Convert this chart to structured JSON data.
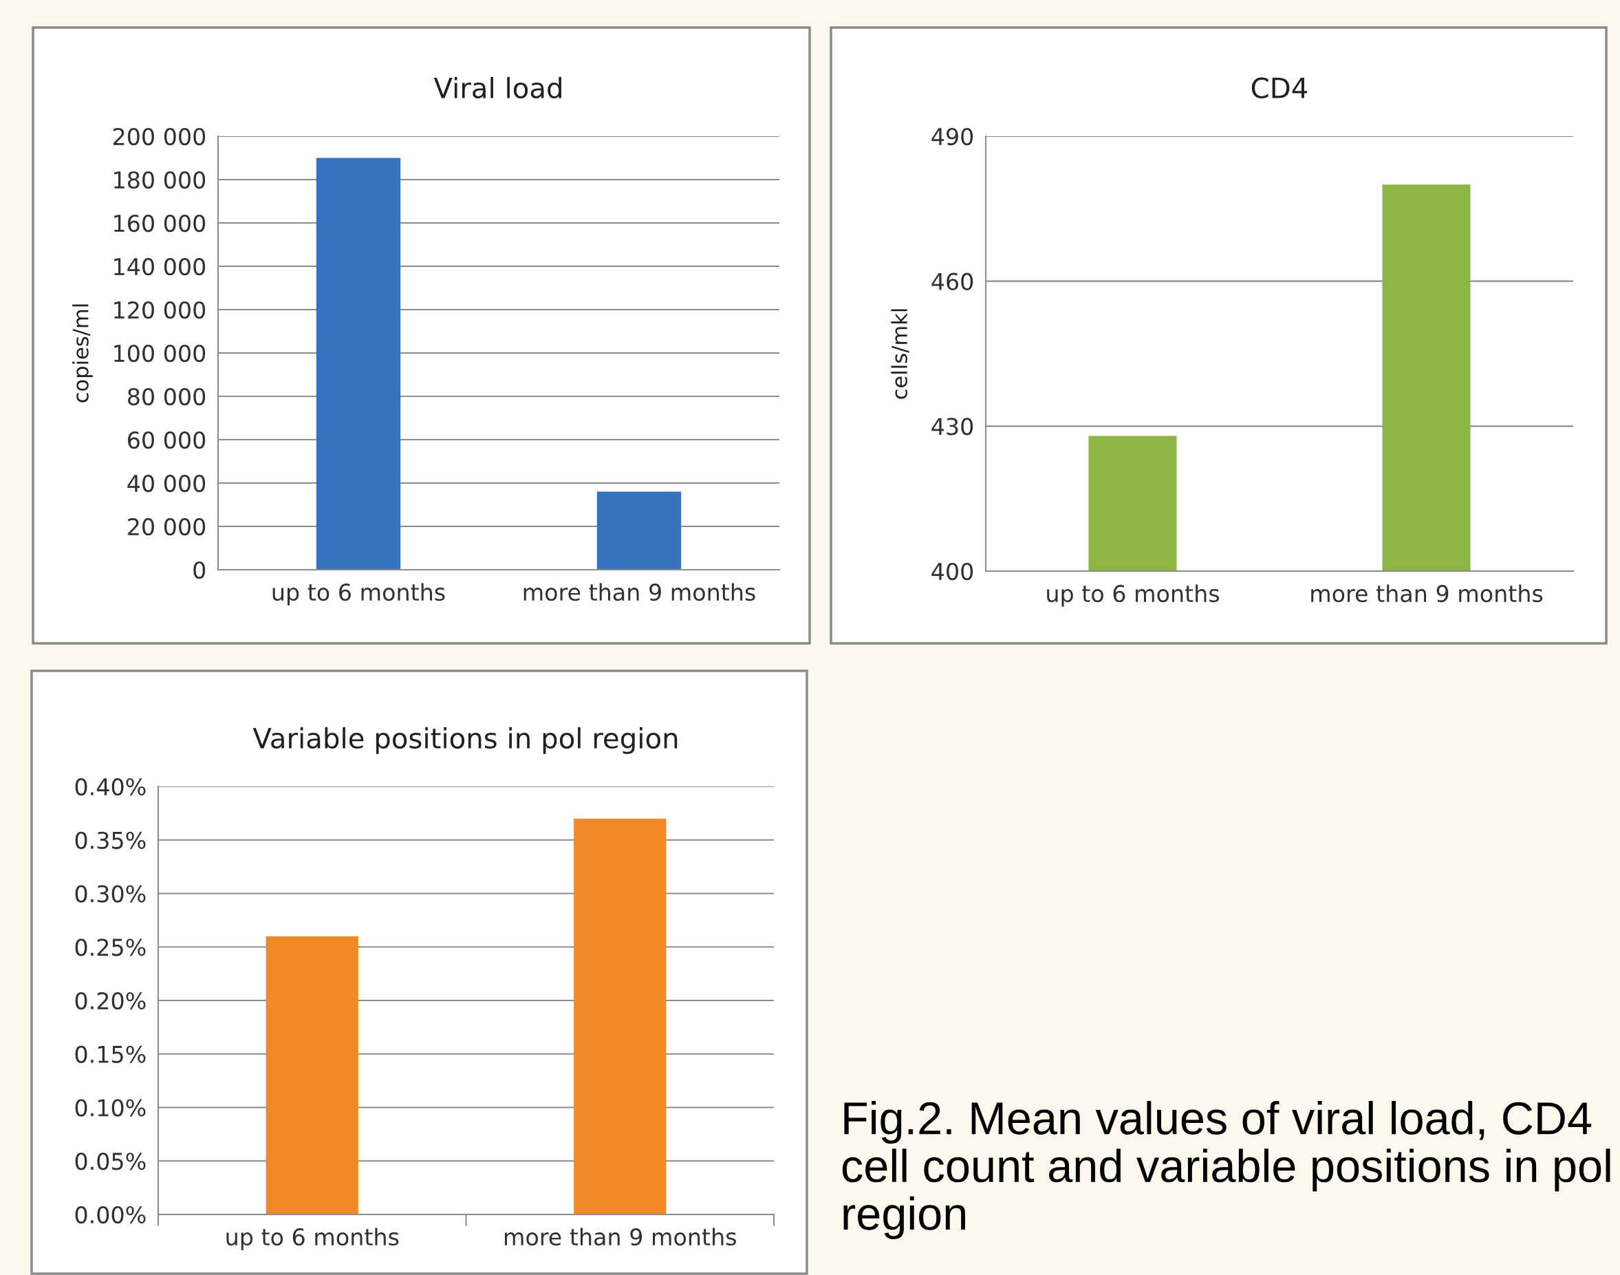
{
  "chart_data": [
    {
      "type": "bar",
      "title": "Viral load",
      "ylabel": "copies/ml",
      "categories": [
        "up to 6 months",
        "more than 9 months"
      ],
      "values": [
        190000,
        36000
      ],
      "color": "#3673bf",
      "ylim": [
        0,
        200000
      ],
      "yticks": [
        {
          "value": 0,
          "label": "0"
        },
        {
          "value": 20000,
          "label": "20 000"
        },
        {
          "value": 40000,
          "label": "40 000"
        },
        {
          "value": 60000,
          "label": "60 000"
        },
        {
          "value": 80000,
          "label": "80 000"
        },
        {
          "value": 100000,
          "label": "100 000"
        },
        {
          "value": 120000,
          "label": "120 000"
        },
        {
          "value": 140000,
          "label": "140 000"
        },
        {
          "value": 160000,
          "label": "160 000"
        },
        {
          "value": 180000,
          "label": "180 000"
        },
        {
          "value": 200000,
          "label": "200 000"
        }
      ],
      "grid": "y"
    },
    {
      "type": "bar",
      "title": "CD4",
      "ylabel": "cells/mkl",
      "categories": [
        "up to 6 months",
        "more than 9 months"
      ],
      "values": [
        428,
        480
      ],
      "color": "#8db444",
      "ylim": [
        400,
        490
      ],
      "yticks": [
        400,
        430,
        460,
        490
      ],
      "grid": "y"
    },
    {
      "type": "bar",
      "title": "Variable positions in pol region",
      "categories": [
        "up to 6 months",
        "more than 9 months"
      ],
      "values": [
        0.26,
        0.37
      ],
      "color": "#f08a26",
      "ylim": [
        0,
        0.4
      ],
      "yticks": [
        {
          "value": 0,
          "label": "0.00%"
        },
        {
          "value": 0.05,
          "label": "0.05%"
        },
        {
          "value": 0.1,
          "label": "0.10%"
        },
        {
          "value": 0.15,
          "label": "0.15%"
        },
        {
          "value": 0.2,
          "label": "0.20%"
        },
        {
          "value": 0.25,
          "label": "0.25%"
        },
        {
          "value": 0.3,
          "label": "0.30%"
        },
        {
          "value": 0.35,
          "label": "0.35%"
        },
        {
          "value": 0.4,
          "label": "0.40%"
        }
      ],
      "grid": "y",
      "annotations": [
        "Fig.2. Mean values of viral load, CD4 cell count and variable positions in pol region"
      ]
    }
  ]
}
